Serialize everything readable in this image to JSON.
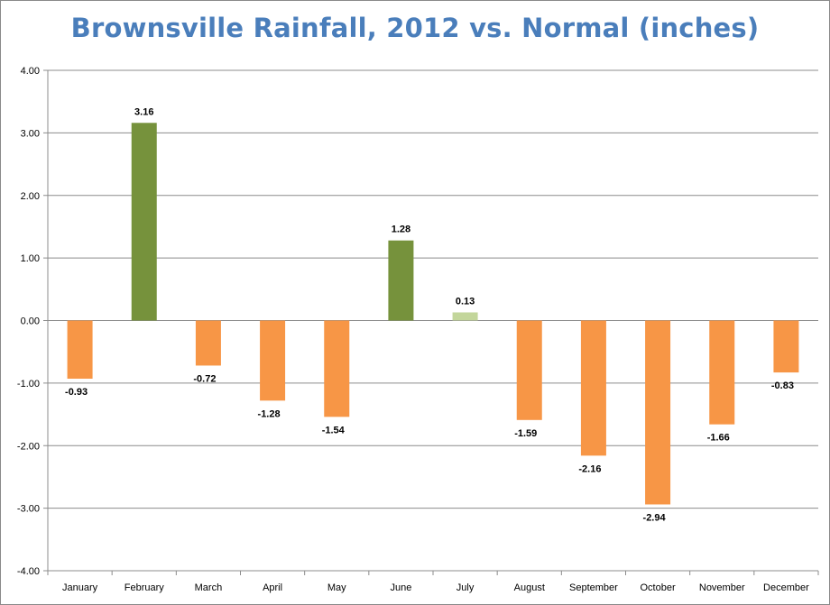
{
  "chart_data": {
    "type": "bar",
    "title": "Brownsville Rainfall, 2012 vs. Normal (inches)",
    "xlabel": "",
    "ylabel": "",
    "ylim": [
      -4,
      4
    ],
    "yticks": [
      "4.00",
      "3.00",
      "2.00",
      "1.00",
      "0.00",
      "-1.00",
      "-2.00",
      "-3.00",
      "-4.00"
    ],
    "ytick_values": [
      4,
      3,
      2,
      1,
      0,
      -1,
      -2,
      -3,
      -4
    ],
    "categories": [
      "January",
      "February",
      "March",
      "April",
      "May",
      "June",
      "July",
      "August",
      "September",
      "October",
      "November",
      "December"
    ],
    "values": [
      -0.93,
      3.16,
      -0.72,
      -1.28,
      -1.54,
      1.28,
      0.13,
      -1.59,
      -2.16,
      -2.94,
      -1.66,
      -0.83
    ],
    "data_labels": [
      "-0.93",
      "3.16",
      "-0.72",
      "-1.28",
      "-1.54",
      "1.28",
      "0.13",
      "-1.59",
      "-2.16",
      "-2.94",
      "-1.66",
      "-0.83"
    ],
    "bar_colors": [
      "#f79646",
      "#76923c",
      "#f79646",
      "#f79646",
      "#f79646",
      "#76923c",
      "#c3d69b",
      "#f79646",
      "#f79646",
      "#f79646",
      "#f79646",
      "#f79646"
    ],
    "grid": true,
    "legend": "none"
  }
}
